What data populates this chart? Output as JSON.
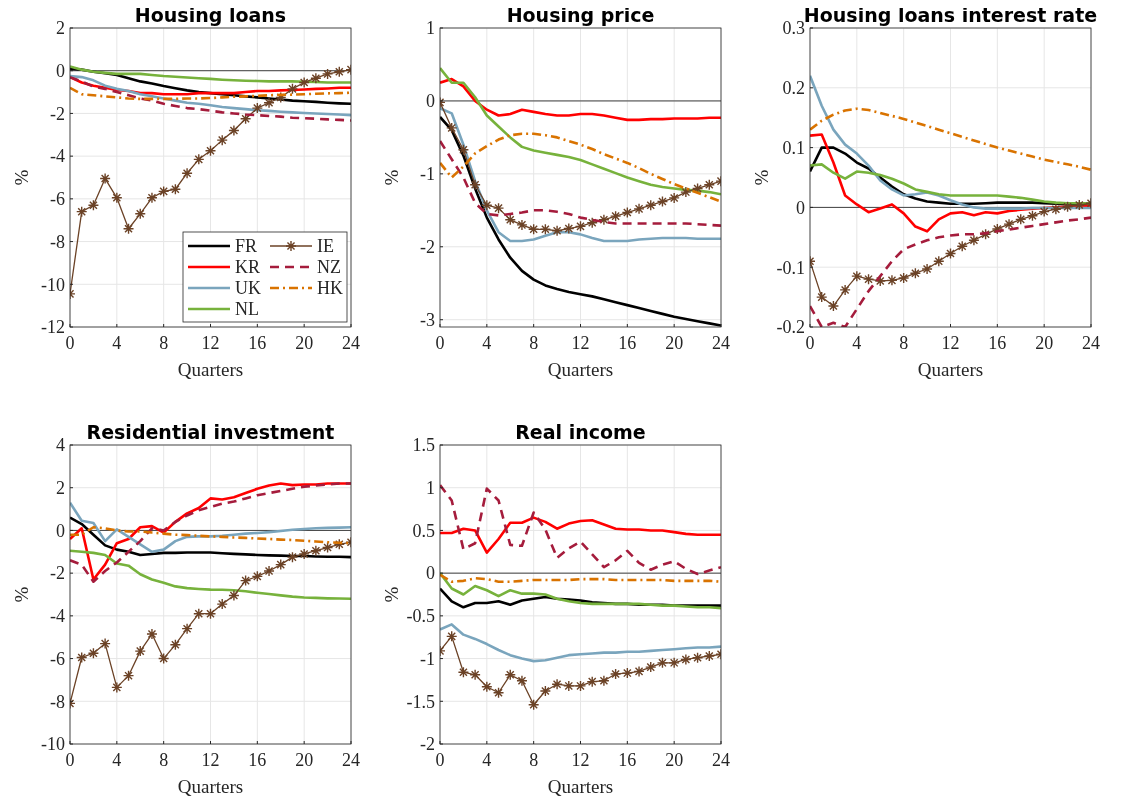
{
  "chart_data": [
    {
      "type": "line",
      "title": "Housing loans",
      "xlabel": "Quarters",
      "ylabel": "%",
      "x": [
        0,
        1,
        2,
        3,
        4,
        5,
        6,
        7,
        8,
        9,
        10,
        11,
        12,
        13,
        14,
        15,
        16,
        17,
        18,
        19,
        20,
        21,
        22,
        23,
        24
      ],
      "xlim": [
        0,
        24
      ],
      "xticks": [
        0,
        4,
        8,
        12,
        16,
        20,
        24
      ],
      "ylim": [
        -12,
        2
      ],
      "yticks": [
        -12,
        -10,
        -8,
        -6,
        -4,
        -2,
        0,
        2
      ],
      "grid": true,
      "legend": "bottom right",
      "ref_lines": [
        {
          "axis": "y",
          "value": 0,
          "color": "#404040"
        }
      ],
      "series": [
        {
          "name": "FR",
          "color": "#000000",
          "line_style": "solid",
          "values": [
            0.1,
            0.05,
            -0.05,
            -0.12,
            -0.2,
            -0.35,
            -0.5,
            -0.6,
            -0.72,
            -0.82,
            -0.92,
            -1.0,
            -1.05,
            -1.1,
            -1.15,
            -1.2,
            -1.25,
            -1.3,
            -1.35,
            -1.4,
            -1.43,
            -1.46,
            -1.5,
            -1.53,
            -1.55
          ]
        },
        {
          "name": "KR",
          "color": "#ff0000",
          "line_style": "solid",
          "values": [
            -0.3,
            -0.55,
            -0.7,
            -0.8,
            -0.9,
            -0.95,
            -1.05,
            -1.05,
            -1.1,
            -1.1,
            -1.1,
            -1.05,
            -1.05,
            -1.05,
            -1.05,
            -1.0,
            -0.95,
            -0.95,
            -0.92,
            -0.9,
            -0.88,
            -0.85,
            -0.83,
            -0.8,
            -0.8
          ]
        },
        {
          "name": "UK",
          "color": "#7aa5bd",
          "line_style": "solid",
          "values": [
            -0.25,
            -0.3,
            -0.45,
            -0.7,
            -0.85,
            -0.95,
            -1.1,
            -1.2,
            -1.3,
            -1.4,
            -1.5,
            -1.55,
            -1.62,
            -1.7,
            -1.75,
            -1.8,
            -1.85,
            -1.88,
            -1.92,
            -1.95,
            -1.98,
            -2.0,
            -2.03,
            -2.05,
            -2.08
          ]
        },
        {
          "name": "NL",
          "color": "#77b23c",
          "line_style": "solid",
          "values": [
            0.2,
            0.05,
            -0.05,
            -0.1,
            -0.15,
            -0.15,
            -0.15,
            -0.2,
            -0.25,
            -0.28,
            -0.32,
            -0.35,
            -0.38,
            -0.42,
            -0.45,
            -0.47,
            -0.48,
            -0.5,
            -0.5,
            -0.5,
            -0.52,
            -0.53,
            -0.55,
            -0.55,
            -0.55
          ]
        },
        {
          "name": "IE",
          "color": "#6b4226",
          "line_style": "solid",
          "marker": "cross",
          "values": [
            -10.45,
            -6.6,
            -6.3,
            -5.05,
            -5.95,
            -7.4,
            -6.7,
            -5.95,
            -5.65,
            -5.55,
            -4.8,
            -4.15,
            -3.75,
            -3.25,
            -2.8,
            -2.25,
            -1.75,
            -1.5,
            -1.25,
            -0.85,
            -0.55,
            -0.35,
            -0.15,
            -0.05,
            0.05
          ]
        },
        {
          "name": "NZ",
          "color": "#a51c3c",
          "line_style": "dashed",
          "values": [
            -0.3,
            -0.5,
            -0.75,
            -0.85,
            -1.0,
            -1.15,
            -1.3,
            -1.4,
            -1.55,
            -1.65,
            -1.75,
            -1.8,
            -1.87,
            -1.95,
            -2.0,
            -2.05,
            -2.08,
            -2.12,
            -2.15,
            -2.2,
            -2.22,
            -2.25,
            -2.28,
            -2.3,
            -2.33
          ]
        },
        {
          "name": "HK",
          "color": "#d97300",
          "line_style": "dashdot",
          "values": [
            -0.8,
            -1.1,
            -1.15,
            -1.2,
            -1.25,
            -1.3,
            -1.32,
            -1.32,
            -1.32,
            -1.32,
            -1.3,
            -1.3,
            -1.28,
            -1.25,
            -1.22,
            -1.2,
            -1.18,
            -1.15,
            -1.13,
            -1.12,
            -1.1,
            -1.08,
            -1.06,
            -1.05,
            -1.03
          ]
        }
      ]
    },
    {
      "type": "line",
      "title": "Housing price",
      "xlabel": "Quarters",
      "ylabel": "%",
      "x": [
        0,
        1,
        2,
        3,
        4,
        5,
        6,
        7,
        8,
        9,
        10,
        11,
        12,
        13,
        14,
        15,
        16,
        17,
        18,
        19,
        20,
        21,
        22,
        23,
        24
      ],
      "xlim": [
        0,
        24
      ],
      "xticks": [
        0,
        4,
        8,
        12,
        16,
        20,
        24
      ],
      "ylim": [
        -3.1,
        1
      ],
      "yticks": [
        -3,
        -2,
        -1,
        0,
        1
      ],
      "grid": true,
      "ref_lines": [
        {
          "axis": "y",
          "value": 0,
          "color": "#404040"
        }
      ],
      "series": [
        {
          "color": "#000000",
          "line_style": "solid",
          "values": [
            -0.22,
            -0.4,
            -0.75,
            -1.2,
            -1.6,
            -1.9,
            -2.15,
            -2.33,
            -2.45,
            -2.53,
            -2.58,
            -2.62,
            -2.65,
            -2.68,
            -2.72,
            -2.76,
            -2.8,
            -2.84,
            -2.88,
            -2.92,
            -2.96,
            -2.99,
            -3.02,
            -3.05,
            -3.08
          ]
        },
        {
          "color": "#ff0000",
          "line_style": "solid",
          "values": [
            0.25,
            0.3,
            0.2,
            0.0,
            -0.12,
            -0.2,
            -0.18,
            -0.12,
            -0.15,
            -0.18,
            -0.2,
            -0.2,
            -0.18,
            -0.18,
            -0.2,
            -0.23,
            -0.26,
            -0.26,
            -0.25,
            -0.25,
            -0.24,
            -0.24,
            -0.24,
            -0.23,
            -0.23
          ]
        },
        {
          "color": "#7aa5bd",
          "line_style": "solid",
          "values": [
            -0.1,
            -0.17,
            -0.6,
            -1.1,
            -1.5,
            -1.8,
            -1.92,
            -1.92,
            -1.9,
            -1.85,
            -1.8,
            -1.8,
            -1.83,
            -1.88,
            -1.92,
            -1.92,
            -1.92,
            -1.9,
            -1.89,
            -1.88,
            -1.88,
            -1.88,
            -1.89,
            -1.89,
            -1.89
          ]
        },
        {
          "color": "#77b23c",
          "line_style": "solid",
          "values": [
            0.45,
            0.25,
            0.25,
            0.05,
            -0.2,
            -0.35,
            -0.5,
            -0.63,
            -0.68,
            -0.71,
            -0.74,
            -0.77,
            -0.81,
            -0.87,
            -0.93,
            -0.99,
            -1.05,
            -1.1,
            -1.15,
            -1.18,
            -1.2,
            -1.22,
            -1.23,
            -1.25,
            -1.28
          ]
        },
        {
          "color": "#6b4226",
          "line_style": "solid",
          "marker": "cross",
          "values": [
            -0.02,
            -0.37,
            -0.67,
            -1.15,
            -1.43,
            -1.47,
            -1.63,
            -1.7,
            -1.76,
            -1.76,
            -1.78,
            -1.75,
            -1.72,
            -1.67,
            -1.63,
            -1.58,
            -1.53,
            -1.48,
            -1.43,
            -1.38,
            -1.33,
            -1.25,
            -1.2,
            -1.15,
            -1.1
          ]
        },
        {
          "color": "#a51c3c",
          "line_style": "dashed",
          "values": [
            -0.55,
            -0.8,
            -1.05,
            -1.4,
            -1.55,
            -1.57,
            -1.55,
            -1.53,
            -1.5,
            -1.5,
            -1.52,
            -1.55,
            -1.6,
            -1.63,
            -1.66,
            -1.68,
            -1.68,
            -1.68,
            -1.68,
            -1.68,
            -1.68,
            -1.68,
            -1.69,
            -1.7,
            -1.71
          ]
        },
        {
          "color": "#d97300",
          "line_style": "dashdot",
          "values": [
            -0.85,
            -1.05,
            -0.9,
            -0.72,
            -0.62,
            -0.53,
            -0.47,
            -0.45,
            -0.45,
            -0.47,
            -0.5,
            -0.55,
            -0.6,
            -0.66,
            -0.73,
            -0.79,
            -0.85,
            -0.92,
            -1.0,
            -1.07,
            -1.14,
            -1.2,
            -1.26,
            -1.32,
            -1.38
          ]
        }
      ]
    },
    {
      "type": "line",
      "title": "Housing loans interest rate",
      "xlabel": "Quarters",
      "ylabel": "%",
      "x": [
        0,
        1,
        2,
        3,
        4,
        5,
        6,
        7,
        8,
        9,
        10,
        11,
        12,
        13,
        14,
        15,
        16,
        17,
        18,
        19,
        20,
        21,
        22,
        23,
        24
      ],
      "xlim": [
        0,
        24
      ],
      "xticks": [
        0,
        4,
        8,
        12,
        16,
        20,
        24
      ],
      "ylim": [
        -0.2,
        0.3
      ],
      "yticks": [
        -0.2,
        -0.1,
        0,
        0.1,
        0.2,
        0.3
      ],
      "grid": true,
      "ref_lines": [
        {
          "axis": "y",
          "value": 0,
          "color": "#404040"
        }
      ],
      "series": [
        {
          "color": "#000000",
          "line_style": "solid",
          "values": [
            0.06,
            0.1,
            0.1,
            0.09,
            0.075,
            0.065,
            0.05,
            0.035,
            0.022,
            0.015,
            0.01,
            0.008,
            0.006,
            0.006,
            0.006,
            0.007,
            0.008,
            0.008,
            0.008,
            0.008,
            0.007,
            0.006,
            0.005,
            0.005,
            0.005
          ]
        },
        {
          "color": "#ff0000",
          "line_style": "solid",
          "values": [
            0.12,
            0.122,
            0.075,
            0.02,
            0.005,
            -0.008,
            -0.002,
            0.005,
            -0.01,
            -0.032,
            -0.04,
            -0.02,
            -0.01,
            -0.008,
            -0.013,
            -0.008,
            -0.01,
            -0.006,
            -0.004,
            -0.002,
            -0.001,
            0.0,
            0.001,
            0.002,
            0.003
          ]
        },
        {
          "color": "#7aa5bd",
          "line_style": "solid",
          "values": [
            0.22,
            0.17,
            0.13,
            0.105,
            0.09,
            0.07,
            0.045,
            0.03,
            0.02,
            0.022,
            0.025,
            0.02,
            0.012,
            0.005,
            0.0,
            -0.002,
            -0.002,
            -0.002,
            -0.002,
            -0.001,
            -0.001,
            -0.001,
            -0.001,
            -0.001,
            -0.001
          ]
        },
        {
          "color": "#77b23c",
          "line_style": "solid",
          "values": [
            0.07,
            0.072,
            0.058,
            0.048,
            0.06,
            0.058,
            0.054,
            0.048,
            0.04,
            0.03,
            0.026,
            0.022,
            0.02,
            0.02,
            0.02,
            0.02,
            0.02,
            0.018,
            0.016,
            0.013,
            0.01,
            0.008,
            0.007,
            0.007,
            0.007
          ]
        },
        {
          "color": "#6b4226",
          "line_style": "solid",
          "marker": "cross",
          "values": [
            -0.09,
            -0.15,
            -0.165,
            -0.138,
            -0.115,
            -0.12,
            -0.123,
            -0.122,
            -0.118,
            -0.11,
            -0.103,
            -0.09,
            -0.077,
            -0.065,
            -0.055,
            -0.045,
            -0.036,
            -0.028,
            -0.02,
            -0.014,
            -0.007,
            -0.003,
            0.001,
            0.004,
            0.007
          ]
        },
        {
          "color": "#a51c3c",
          "line_style": "dashed",
          "values": [
            -0.165,
            -0.2,
            -0.193,
            -0.2,
            -0.17,
            -0.14,
            -0.115,
            -0.09,
            -0.07,
            -0.062,
            -0.055,
            -0.05,
            -0.047,
            -0.045,
            -0.045,
            -0.043,
            -0.04,
            -0.037,
            -0.034,
            -0.031,
            -0.028,
            -0.025,
            -0.022,
            -0.02,
            -0.017
          ]
        },
        {
          "color": "#d97300",
          "line_style": "dashdot",
          "values": [
            0.13,
            0.145,
            0.155,
            0.162,
            0.165,
            0.163,
            0.158,
            0.153,
            0.148,
            0.142,
            0.136,
            0.13,
            0.124,
            0.118,
            0.112,
            0.106,
            0.1,
            0.095,
            0.09,
            0.085,
            0.08,
            0.076,
            0.072,
            0.068,
            0.063
          ]
        }
      ]
    },
    {
      "type": "line",
      "title": "Residential investment",
      "xlabel": "Quarters",
      "ylabel": "%",
      "x": [
        0,
        1,
        2,
        3,
        4,
        5,
        6,
        7,
        8,
        9,
        10,
        11,
        12,
        13,
        14,
        15,
        16,
        17,
        18,
        19,
        20,
        21,
        22,
        23,
        24
      ],
      "xlim": [
        0,
        24
      ],
      "xticks": [
        0,
        4,
        8,
        12,
        16,
        20,
        24
      ],
      "ylim": [
        -10,
        4
      ],
      "yticks": [
        -10,
        -8,
        -6,
        -4,
        -2,
        0,
        2,
        4
      ],
      "grid": true,
      "ref_lines": [
        {
          "axis": "y",
          "value": 0,
          "color": "#404040"
        }
      ],
      "series": [
        {
          "color": "#000000",
          "line_style": "solid",
          "values": [
            0.6,
            0.3,
            -0.2,
            -0.7,
            -0.9,
            -1.0,
            -1.15,
            -1.1,
            -1.05,
            -1.05,
            -1.03,
            -1.03,
            -1.03,
            -1.07,
            -1.1,
            -1.12,
            -1.15,
            -1.17,
            -1.18,
            -1.2,
            -1.2,
            -1.22,
            -1.23,
            -1.23,
            -1.25
          ]
        },
        {
          "color": "#ff0000",
          "line_style": "solid",
          "values": [
            -0.4,
            0.1,
            -2.3,
            -1.6,
            -0.6,
            -0.4,
            0.15,
            0.2,
            -0.1,
            0.4,
            0.8,
            1.05,
            1.5,
            1.45,
            1.55,
            1.75,
            1.95,
            2.1,
            2.2,
            2.12,
            2.15,
            2.15,
            2.2,
            2.2,
            2.2
          ]
        },
        {
          "color": "#7aa5bd",
          "line_style": "solid",
          "values": [
            1.3,
            0.45,
            0.35,
            -0.5,
            0.05,
            -0.3,
            -0.65,
            -1.0,
            -0.9,
            -0.5,
            -0.3,
            -0.28,
            -0.28,
            -0.25,
            -0.2,
            -0.15,
            -0.12,
            -0.08,
            -0.03,
            0.03,
            0.07,
            0.1,
            0.12,
            0.13,
            0.15
          ]
        },
        {
          "color": "#77b23c",
          "line_style": "solid",
          "values": [
            -0.95,
            -1.0,
            -1.05,
            -1.15,
            -1.55,
            -1.65,
            -2.05,
            -2.3,
            -2.45,
            -2.62,
            -2.7,
            -2.74,
            -2.77,
            -2.78,
            -2.8,
            -2.85,
            -2.92,
            -2.98,
            -3.04,
            -3.1,
            -3.14,
            -3.16,
            -3.18,
            -3.19,
            -3.2
          ]
        },
        {
          "color": "#6b4226",
          "line_style": "solid",
          "marker": "cross",
          "values": [
            -8.1,
            -5.95,
            -5.75,
            -5.3,
            -7.35,
            -6.8,
            -5.65,
            -4.85,
            -6.0,
            -5.35,
            -4.6,
            -3.9,
            -3.9,
            -3.45,
            -3.05,
            -2.35,
            -2.15,
            -1.9,
            -1.6,
            -1.25,
            -1.1,
            -0.95,
            -0.8,
            -0.65,
            -0.55
          ]
        },
        {
          "color": "#a51c3c",
          "line_style": "dashed",
          "values": [
            -1.4,
            -1.6,
            -2.4,
            -1.9,
            -1.5,
            -1.0,
            -0.5,
            0.1,
            0.0,
            0.4,
            0.7,
            0.95,
            1.1,
            1.25,
            1.35,
            1.5,
            1.65,
            1.75,
            1.85,
            1.95,
            2.05,
            2.1,
            2.15,
            2.2,
            2.2
          ]
        },
        {
          "color": "#d97300",
          "line_style": "dashdot",
          "values": [
            -0.2,
            -0.2,
            0.15,
            0.1,
            0.0,
            -0.05,
            -0.05,
            -0.1,
            -0.15,
            -0.2,
            -0.22,
            -0.25,
            -0.28,
            -0.3,
            -0.33,
            -0.35,
            -0.38,
            -0.4,
            -0.43,
            -0.45,
            -0.48,
            -0.52,
            -0.55,
            -0.58,
            -0.6
          ]
        }
      ]
    },
    {
      "type": "line",
      "title": "Real income",
      "xlabel": "Quarters",
      "ylabel": "%",
      "x": [
        0,
        1,
        2,
        3,
        4,
        5,
        6,
        7,
        8,
        9,
        10,
        11,
        12,
        13,
        14,
        15,
        16,
        17,
        18,
        19,
        20,
        21,
        22,
        23,
        24
      ],
      "xlim": [
        0,
        24
      ],
      "xticks": [
        0,
        4,
        8,
        12,
        16,
        20,
        24
      ],
      "ylim": [
        -2,
        1.5
      ],
      "yticks": [
        -2,
        -1.5,
        -1,
        -0.5,
        0,
        0.5,
        1,
        1.5
      ],
      "grid": true,
      "ref_lines": [
        {
          "axis": "y",
          "value": 0,
          "color": "#404040"
        }
      ],
      "series": [
        {
          "color": "#000000",
          "line_style": "solid",
          "values": [
            -0.18,
            -0.33,
            -0.4,
            -0.35,
            -0.35,
            -0.33,
            -0.37,
            -0.32,
            -0.3,
            -0.28,
            -0.3,
            -0.31,
            -0.32,
            -0.34,
            -0.35,
            -0.36,
            -0.36,
            -0.37,
            -0.37,
            -0.37,
            -0.38,
            -0.38,
            -0.38,
            -0.38,
            -0.38
          ]
        },
        {
          "color": "#ff0000",
          "line_style": "solid",
          "values": [
            0.47,
            0.47,
            0.52,
            0.5,
            0.24,
            0.4,
            0.59,
            0.59,
            0.65,
            0.6,
            0.52,
            0.58,
            0.61,
            0.62,
            0.57,
            0.52,
            0.51,
            0.51,
            0.5,
            0.5,
            0.48,
            0.46,
            0.45,
            0.45,
            0.45
          ]
        },
        {
          "color": "#7aa5bd",
          "line_style": "solid",
          "values": [
            -0.66,
            -0.6,
            -0.72,
            -0.77,
            -0.83,
            -0.9,
            -0.96,
            -1.0,
            -1.03,
            -1.02,
            -0.99,
            -0.96,
            -0.95,
            -0.94,
            -0.93,
            -0.93,
            -0.92,
            -0.92,
            -0.91,
            -0.9,
            -0.89,
            -0.88,
            -0.87,
            -0.87,
            -0.86
          ]
        },
        {
          "color": "#77b23c",
          "line_style": "solid",
          "values": [
            0.0,
            -0.18,
            -0.25,
            -0.15,
            -0.2,
            -0.27,
            -0.2,
            -0.24,
            -0.24,
            -0.25,
            -0.3,
            -0.33,
            -0.35,
            -0.36,
            -0.36,
            -0.36,
            -0.36,
            -0.36,
            -0.37,
            -0.38,
            -0.38,
            -0.39,
            -0.4,
            -0.4,
            -0.41
          ]
        },
        {
          "color": "#6b4226",
          "line_style": "solid",
          "marker": "cross",
          "values": [
            -0.91,
            -0.74,
            -1.16,
            -1.19,
            -1.33,
            -1.4,
            -1.19,
            -1.26,
            -1.54,
            -1.38,
            -1.3,
            -1.32,
            -1.32,
            -1.27,
            -1.26,
            -1.18,
            -1.17,
            -1.15,
            -1.1,
            -1.05,
            -1.05,
            -1.01,
            -0.99,
            -0.97,
            -0.95
          ]
        },
        {
          "color": "#a51c3c",
          "line_style": "dashed",
          "values": [
            1.03,
            0.85,
            0.28,
            0.35,
            0.99,
            0.85,
            0.33,
            0.32,
            0.71,
            0.51,
            0.18,
            0.29,
            0.37,
            0.22,
            0.07,
            0.15,
            0.26,
            0.12,
            0.04,
            0.1,
            0.14,
            0.05,
            -0.01,
            0.03,
            0.07
          ]
        },
        {
          "color": "#d97300",
          "line_style": "dashdot",
          "values": [
            -0.02,
            -0.1,
            -0.09,
            -0.06,
            -0.07,
            -0.1,
            -0.1,
            -0.09,
            -0.08,
            -0.08,
            -0.08,
            -0.08,
            -0.07,
            -0.07,
            -0.07,
            -0.08,
            -0.08,
            -0.08,
            -0.08,
            -0.08,
            -0.09,
            -0.09,
            -0.09,
            -0.09,
            -0.1
          ]
        }
      ]
    }
  ]
}
